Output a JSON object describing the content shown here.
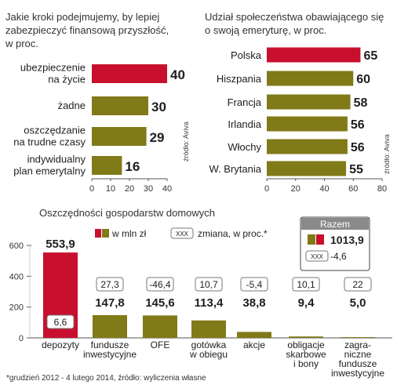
{
  "colors": {
    "red": "#c8102e",
    "olive": "#807a18",
    "axis": "#555555",
    "grid": "#cfcfcf"
  },
  "chart_data": [
    {
      "type": "bar",
      "orientation": "horizontal",
      "title_lines": [
        "Jakie kroki podejmujemy, by lepiej",
        "zabezpieczyć finansową przyszłość,",
        "w proc."
      ],
      "categories": [
        [
          "ubezpieczenie",
          "na życie"
        ],
        [
          "żadne"
        ],
        [
          "oszczędzanie",
          "na trudne czasy"
        ],
        [
          "indywidualny",
          "plan emerytalny"
        ]
      ],
      "values": [
        40,
        30,
        29,
        16
      ],
      "value_labels": [
        "40",
        "30",
        "29",
        "16"
      ],
      "highlight_index": 0,
      "xlim": [
        0,
        40
      ],
      "xticks": [
        "0",
        "10",
        "20",
        "30",
        "40"
      ],
      "source": "źródło: Aviva"
    },
    {
      "type": "bar",
      "orientation": "horizontal",
      "title_lines": [
        "Udział społeczeństwa obawiającego się",
        "o swoją emeryturę, w proc."
      ],
      "categories": [
        [
          "Polska"
        ],
        [
          "Hiszpania"
        ],
        [
          "Francja"
        ],
        [
          "Irlandia"
        ],
        [
          "Włochy"
        ],
        [
          "W. Brytania"
        ]
      ],
      "values": [
        65,
        60,
        58,
        56,
        56,
        55
      ],
      "value_labels": [
        "65",
        "60",
        "58",
        "56",
        "56",
        "55"
      ],
      "highlight_index": 0,
      "xlim": [
        0,
        80
      ],
      "xticks": [
        "0",
        "20",
        "40",
        "60",
        "80"
      ],
      "source": "źródło: Aviva"
    },
    {
      "type": "bar",
      "orientation": "vertical",
      "title": "Oszczędności gospodarstw domowych",
      "legend": {
        "value_label": "w mln zł",
        "change_box": "XXX",
        "change_label": "zmiana, w proc.*"
      },
      "total": {
        "title": "Razem",
        "value": "1013,9",
        "change": "-4,6",
        "change_box": "XXX"
      },
      "categories": [
        [
          "depozyty"
        ],
        [
          "fundusze",
          "inwestycyjne"
        ],
        [
          "OFE"
        ],
        [
          "gotówka",
          "w obiegu"
        ],
        [
          "akcje"
        ],
        [
          "obligacje",
          "skarbowe",
          "i bony"
        ],
        [
          "zagra-",
          "niczne",
          "fundusze",
          "inwestycyjne"
        ]
      ],
      "values": [
        553.9,
        147.8,
        145.6,
        113.4,
        38.8,
        9.4,
        5.0
      ],
      "value_labels": [
        "553,9",
        "147,8",
        "145,6",
        "113,4",
        "38,8",
        "9,4",
        "5,0"
      ],
      "changes": [
        "6,6",
        "27,3",
        "-46,4",
        "10,7",
        "-5,4",
        "10,1",
        "22"
      ],
      "highlight_index": 0,
      "ylim": [
        0,
        600
      ],
      "yticks": [
        "0",
        "200",
        "400",
        "600"
      ],
      "footnote": "*grudzień 2012 - 4 lutego 2014, źródło: wyliczenia własne"
    }
  ]
}
